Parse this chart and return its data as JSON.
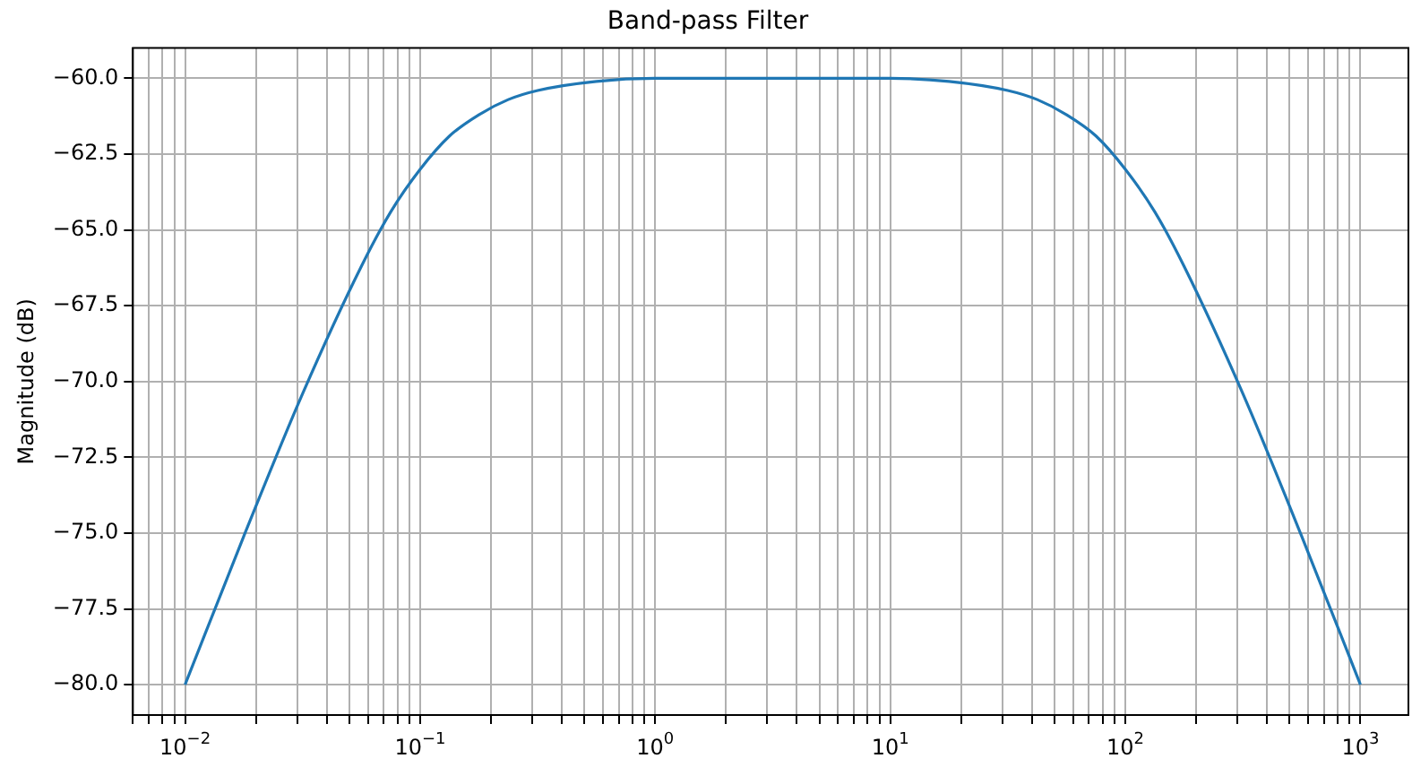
{
  "chart_data": {
    "type": "line",
    "title": "Band-pass Filter",
    "ylabel": "Magnitude (dB)",
    "x": [
      0.01,
      0.01778,
      0.03162,
      0.05623,
      0.075,
      0.1,
      0.1334,
      0.1778,
      0.2371,
      0.3162,
      0.5623,
      1,
      1.778,
      3.162,
      5.623,
      10,
      17.78,
      31.62,
      42.17,
      56.23,
      74.99,
      100,
      133.4,
      177.8,
      316.2,
      562.3,
      1000
    ],
    "series": [
      {
        "color": "#1f77b4",
        "values": [
          -80.0,
          -75.1,
          -70.4,
          -66.2,
          -64.4,
          -63.0,
          -61.9,
          -61.2,
          -60.7,
          -60.4,
          -60.1,
          -60.0,
          -60.0,
          -60.0,
          -60.0,
          -60.0,
          -60.1,
          -60.4,
          -60.7,
          -61.2,
          -61.9,
          -63.0,
          -64.4,
          -66.2,
          -70.4,
          -75.1,
          -80.0
        ]
      }
    ],
    "log": "x",
    "xlim": [
      0.006,
      1600
    ],
    "ylim": [
      -81.0,
      -59.0
    ],
    "xticks": [
      {
        "value": 0.006,
        "label": null
      },
      {
        "value": 0.007,
        "label": null
      },
      {
        "value": 0.008,
        "label": null
      },
      {
        "value": 0.009,
        "label": null
      },
      {
        "value": 0.01,
        "label": "10$^{−2}$"
      },
      {
        "value": 0.02,
        "label": null
      },
      {
        "value": 0.03,
        "label": null
      },
      {
        "value": 0.04,
        "label": null
      },
      {
        "value": 0.05,
        "label": null
      },
      {
        "value": 0.06,
        "label": null
      },
      {
        "value": 0.07,
        "label": null
      },
      {
        "value": 0.08,
        "label": null
      },
      {
        "value": 0.09,
        "label": null
      },
      {
        "value": 0.1,
        "label": "10$^{−1}$"
      },
      {
        "value": 0.2,
        "label": null
      },
      {
        "value": 0.3,
        "label": null
      },
      {
        "value": 0.4,
        "label": null
      },
      {
        "value": 0.5,
        "label": null
      },
      {
        "value": 0.6,
        "label": null
      },
      {
        "value": 0.7,
        "label": null
      },
      {
        "value": 0.8,
        "label": null
      },
      {
        "value": 0.9,
        "label": null
      },
      {
        "value": 1,
        "label": "10$^{0}$"
      },
      {
        "value": 2,
        "label": null
      },
      {
        "value": 3,
        "label": null
      },
      {
        "value": 4,
        "label": null
      },
      {
        "value": 5,
        "label": null
      },
      {
        "value": 6,
        "label": null
      },
      {
        "value": 7,
        "label": null
      },
      {
        "value": 8,
        "label": null
      },
      {
        "value": 9,
        "label": null
      },
      {
        "value": 10,
        "label": "10$^{1}$"
      },
      {
        "value": 20,
        "label": null
      },
      {
        "value": 30,
        "label": null
      },
      {
        "value": 40,
        "label": null
      },
      {
        "value": 50,
        "label": null
      },
      {
        "value": 60,
        "label": null
      },
      {
        "value": 70,
        "label": null
      },
      {
        "value": 80,
        "label": null
      },
      {
        "value": 90,
        "label": null
      },
      {
        "value": 100,
        "label": "10$^{2}$"
      },
      {
        "value": 200,
        "label": null
      },
      {
        "value": 300,
        "label": null
      },
      {
        "value": 400,
        "label": null
      },
      {
        "value": 500,
        "label": null
      },
      {
        "value": 600,
        "label": null
      },
      {
        "value": 700,
        "label": null
      },
      {
        "value": 800,
        "label": null
      },
      {
        "value": 900,
        "label": null
      },
      {
        "value": 1000,
        "label": "10$^{3}$"
      }
    ],
    "yticks": [
      {
        "value": -80,
        "label": "−80.0"
      },
      {
        "value": -77.5,
        "label": "−77.5"
      },
      {
        "value": -75,
        "label": "−75.0"
      },
      {
        "value": -72.5,
        "label": "−72.5"
      },
      {
        "value": -70,
        "label": "−70.0"
      },
      {
        "value": -67.5,
        "label": "−67.5"
      },
      {
        "value": -65,
        "label": "−65.0"
      },
      {
        "value": -62.5,
        "label": "−62.5"
      },
      {
        "value": -60,
        "label": "−60.0"
      }
    ],
    "grid": true,
    "legend": false,
    "marker": "none",
    "line_style": "solid"
  }
}
